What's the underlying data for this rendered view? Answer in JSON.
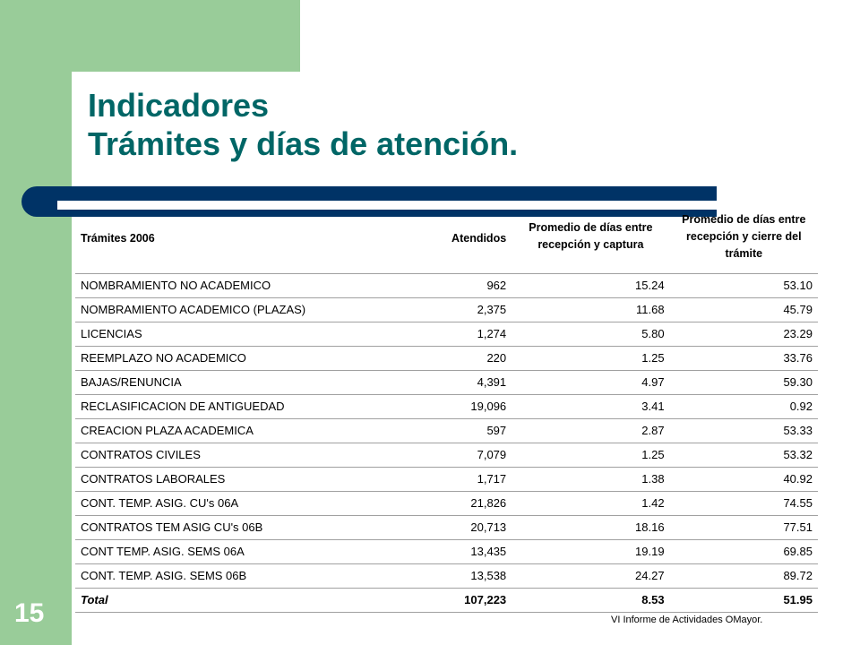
{
  "slide": {
    "title_line1": "Indicadores",
    "title_line2": "Trámites y días de atención.",
    "page_number": "15",
    "footer": "VI Informe de Actividades OMayor."
  },
  "table": {
    "headers": {
      "tramites": "Trámites 2006",
      "atendidos": "Atendidos",
      "captura": "Promedio de días entre recepción y captura",
      "cierre": "Promedio de días entre recepción y cierre del trámite"
    },
    "rows": [
      {
        "name": "NOMBRAMIENTO NO ACADEMICO",
        "atendidos": "962",
        "captura": "15.24",
        "cierre": "53.10"
      },
      {
        "name": "NOMBRAMIENTO ACADEMICO (PLAZAS)",
        "atendidos": "2,375",
        "captura": "11.68",
        "cierre": "45.79"
      },
      {
        "name": "LICENCIAS",
        "atendidos": "1,274",
        "captura": "5.80",
        "cierre": "23.29"
      },
      {
        "name": "REEMPLAZO NO ACADEMICO",
        "atendidos": "220",
        "captura": "1.25",
        "cierre": "33.76"
      },
      {
        "name": "BAJAS/RENUNCIA",
        "atendidos": "4,391",
        "captura": "4.97",
        "cierre": "59.30"
      },
      {
        "name": "RECLASIFICACION DE ANTIGUEDAD",
        "atendidos": "19,096",
        "captura": "3.41",
        "cierre": "0.92"
      },
      {
        "name": "CREACION PLAZA ACADEMICA",
        "atendidos": "597",
        "captura": "2.87",
        "cierre": "53.33"
      },
      {
        "name": "CONTRATOS CIVILES",
        "atendidos": "7,079",
        "captura": "1.25",
        "cierre": "53.32"
      },
      {
        "name": "CONTRATOS LABORALES",
        "atendidos": "1,717",
        "captura": "1.38",
        "cierre": "40.92"
      },
      {
        "name": "CONT. TEMP. ASIG. CU's 06A",
        "atendidos": "21,826",
        "captura": "1.42",
        "cierre": "74.55"
      },
      {
        "name": "CONTRATOS TEM ASIG CU's  06B",
        "atendidos": "20,713",
        "captura": "18.16",
        "cierre": "77.51"
      },
      {
        "name": "CONT TEMP. ASIG. SEMS 06A",
        "atendidos": "13,435",
        "captura": "19.19",
        "cierre": "69.85"
      },
      {
        "name": "CONT. TEMP. ASIG. SEMS  06B",
        "atendidos": "13,538",
        "captura": "24.27",
        "cierre": "89.72"
      }
    ],
    "total": {
      "name": "Total",
      "atendidos": "107,223",
      "captura": "8.53",
      "cierre": "51.95"
    }
  },
  "colors": {
    "title": "#006666",
    "green_frame": "#99cc99",
    "navy_bar": "#003366"
  }
}
